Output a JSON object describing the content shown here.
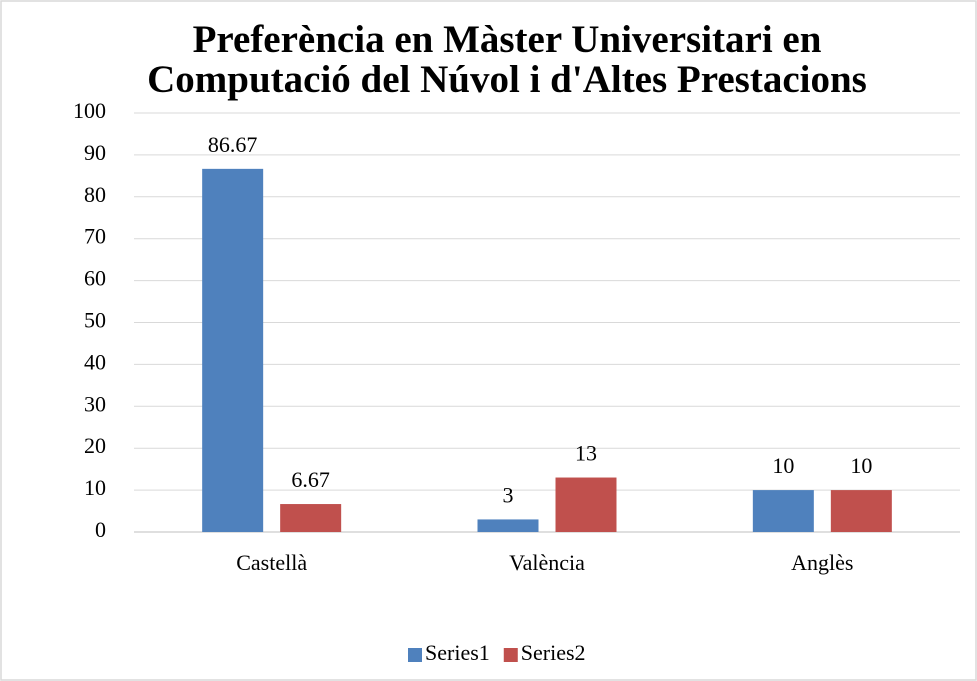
{
  "chart_data": {
    "type": "bar",
    "title": "Preferència en Màster Universitari en Computació del Núvol i d'Altes Prestacions",
    "categories": [
      "Castellà",
      "València",
      "Anglès"
    ],
    "series": [
      {
        "name": "Series1",
        "color": "#4f81bd",
        "values": [
          86.67,
          3,
          10
        ]
      },
      {
        "name": "Series2",
        "color": "#c0504d",
        "values": [
          6.67,
          13,
          10
        ]
      }
    ],
    "ylim": [
      0,
      100
    ],
    "yticks": [
      0,
      10,
      20,
      30,
      40,
      50,
      60,
      70,
      80,
      90,
      100
    ],
    "grid": true,
    "legend": "bottom"
  }
}
